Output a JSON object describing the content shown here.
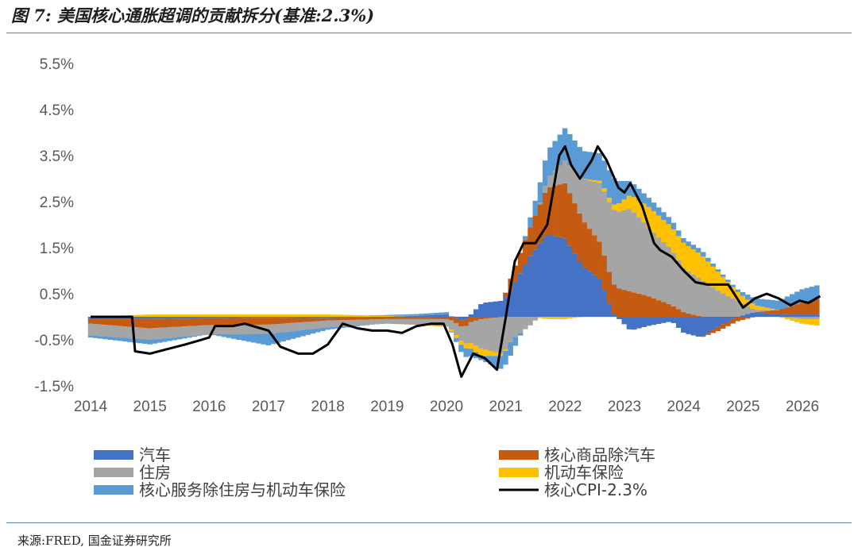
{
  "header": {
    "title": "图 7: 美国核心通胀超调的贡献拆分(基准:2.3%)"
  },
  "footer": {
    "source": "来源:FRED, 国金证券研究所"
  },
  "colors": {
    "autos": "#4472c4",
    "core_goods_ex_autos": "#c55a11",
    "housing": "#a5a5a5",
    "motor_insurance": "#ffc000",
    "services_ex": "#5b9bd5",
    "core_cpi": "#000000"
  },
  "chart_data": {
    "type": "bar",
    "stacked": true,
    "baseline_pct": 2.3,
    "ylim": [
      -1.5,
      5.5
    ],
    "yticks": [
      "-1.5%",
      "-0.5%",
      "0.5%",
      "1.5%",
      "2.5%",
      "3.5%",
      "4.5%",
      "5.5%"
    ],
    "ytick_values": [
      -1.5,
      -0.5,
      0.5,
      1.5,
      2.5,
      3.5,
      4.5,
      5.5
    ],
    "xlim": [
      2014,
      2026.3
    ],
    "xticks": [
      "2014",
      "2015",
      "2016",
      "2017",
      "2018",
      "2019",
      "2020",
      "2021",
      "2022",
      "2023",
      "2024",
      "2025",
      "2026"
    ],
    "xtick_values": [
      2014,
      2015,
      2016,
      2017,
      2018,
      2019,
      2020,
      2021,
      2022,
      2023,
      2024,
      2025,
      2026
    ],
    "legend": [
      {
        "key": "autos",
        "label": "汽车",
        "kind": "bar",
        "color": "#4472c4"
      },
      {
        "key": "core_goods_ex_autos",
        "label": "核心商品除汽车",
        "kind": "bar",
        "color": "#c55a11"
      },
      {
        "key": "housing",
        "label": "住房",
        "kind": "bar",
        "color": "#a5a5a5"
      },
      {
        "key": "motor_insurance",
        "label": "机动车保险",
        "kind": "bar",
        "color": "#ffc000"
      },
      {
        "key": "services_ex",
        "label": "核心服务除住房与机动车保险",
        "kind": "bar",
        "color": "#5b9bd5"
      },
      {
        "key": "core_cpi",
        "label": "核心CPI-2.3%",
        "kind": "line",
        "color": "#000000"
      }
    ],
    "series_knots": {
      "autos": [
        [
          2014,
          -0.05
        ],
        [
          2015,
          -0.05
        ],
        [
          2016,
          -0.03
        ],
        [
          2017,
          -0.02
        ],
        [
          2018,
          -0.03
        ],
        [
          2019,
          0.0
        ],
        [
          2020.0,
          0.05
        ],
        [
          2020.3,
          -0.1
        ],
        [
          2020.6,
          0.3
        ],
        [
          2020.95,
          0.35
        ],
        [
          2021.1,
          0.6
        ],
        [
          2021.4,
          1.3
        ],
        [
          2021.7,
          1.8
        ],
        [
          2022.0,
          1.7
        ],
        [
          2022.3,
          1.1
        ],
        [
          2022.6,
          0.8
        ],
        [
          2022.8,
          0.1
        ],
        [
          2023.1,
          -0.3
        ],
        [
          2023.4,
          -0.2
        ],
        [
          2023.8,
          -0.1
        ],
        [
          2024.0,
          -0.35
        ],
        [
          2024.3,
          -0.45
        ],
        [
          2024.6,
          -0.2
        ],
        [
          2024.9,
          0.0
        ],
        [
          2025.2,
          0.1
        ],
        [
          2025.6,
          0.05
        ],
        [
          2026.0,
          0.05
        ],
        [
          2026.3,
          0.05
        ]
      ],
      "core_goods_ex_autos": [
        [
          2014,
          -0.1
        ],
        [
          2015,
          -0.2
        ],
        [
          2016,
          -0.15
        ],
        [
          2017,
          -0.15
        ],
        [
          2018,
          -0.05
        ],
        [
          2019,
          -0.05
        ],
        [
          2020.0,
          -0.05
        ],
        [
          2020.3,
          -0.15
        ],
        [
          2020.6,
          -0.05
        ],
        [
          2020.95,
          0.0
        ],
        [
          2021.1,
          0.3
        ],
        [
          2021.4,
          0.6
        ],
        [
          2021.7,
          1.0
        ],
        [
          2022.0,
          1.2
        ],
        [
          2022.3,
          1.0
        ],
        [
          2022.6,
          0.8
        ],
        [
          2022.8,
          0.65
        ],
        [
          2023.1,
          0.55
        ],
        [
          2023.4,
          0.45
        ],
        [
          2023.8,
          0.25
        ],
        [
          2024.0,
          0.1
        ],
        [
          2024.3,
          0.0
        ],
        [
          2024.6,
          -0.1
        ],
        [
          2024.9,
          -0.1
        ],
        [
          2025.2,
          0.0
        ],
        [
          2025.6,
          0.1
        ],
        [
          2026.0,
          0.25
        ],
        [
          2026.3,
          0.35
        ]
      ],
      "housing": [
        [
          2014,
          -0.25
        ],
        [
          2015,
          -0.25
        ],
        [
          2016,
          -0.2
        ],
        [
          2017,
          -0.2
        ],
        [
          2018,
          -0.15
        ],
        [
          2019,
          -0.1
        ],
        [
          2020.0,
          -0.15
        ],
        [
          2020.3,
          -0.35
        ],
        [
          2020.6,
          -0.65
        ],
        [
          2020.95,
          -0.8
        ],
        [
          2021.1,
          -0.5
        ],
        [
          2021.4,
          -0.2
        ],
        [
          2021.7,
          0.2
        ],
        [
          2022.0,
          0.5
        ],
        [
          2022.3,
          0.9
        ],
        [
          2022.6,
          1.3
        ],
        [
          2022.8,
          1.6
        ],
        [
          2023.1,
          1.8
        ],
        [
          2023.4,
          1.5
        ],
        [
          2023.8,
          1.2
        ],
        [
          2024.0,
          0.95
        ],
        [
          2024.3,
          0.8
        ],
        [
          2024.6,
          0.55
        ],
        [
          2024.9,
          0.35
        ],
        [
          2025.2,
          0.05
        ],
        [
          2025.6,
          0.0
        ],
        [
          2026.0,
          -0.05
        ],
        [
          2026.3,
          -0.05
        ]
      ],
      "motor_insurance": [
        [
          2014,
          0.0
        ],
        [
          2015,
          0.05
        ],
        [
          2016,
          0.05
        ],
        [
          2017,
          0.05
        ],
        [
          2018,
          0.05
        ],
        [
          2019,
          0.02
        ],
        [
          2020.0,
          -0.02
        ],
        [
          2020.3,
          -0.1
        ],
        [
          2020.6,
          -0.15
        ],
        [
          2020.95,
          -0.05
        ],
        [
          2021.1,
          0.0
        ],
        [
          2021.4,
          0.0
        ],
        [
          2021.7,
          -0.05
        ],
        [
          2022.0,
          -0.05
        ],
        [
          2022.3,
          0.0
        ],
        [
          2022.6,
          0.05
        ],
        [
          2022.8,
          0.1
        ],
        [
          2023.1,
          0.3
        ],
        [
          2023.4,
          0.45
        ],
        [
          2023.8,
          0.5
        ],
        [
          2024.0,
          0.55
        ],
        [
          2024.3,
          0.55
        ],
        [
          2024.6,
          0.4
        ],
        [
          2024.9,
          0.2
        ],
        [
          2025.2,
          0.1
        ],
        [
          2025.6,
          0.0
        ],
        [
          2026.0,
          -0.1
        ],
        [
          2026.3,
          -0.15
        ]
      ],
      "services_ex": [
        [
          2014,
          -0.05
        ],
        [
          2015,
          -0.1
        ],
        [
          2016,
          0.0
        ],
        [
          2017,
          -0.25
        ],
        [
          2018,
          -0.05
        ],
        [
          2019,
          0.02
        ],
        [
          2020.0,
          0.05
        ],
        [
          2020.3,
          -0.2
        ],
        [
          2020.6,
          -0.1
        ],
        [
          2020.95,
          -0.3
        ],
        [
          2021.1,
          -0.3
        ],
        [
          2021.4,
          0.2
        ],
        [
          2021.7,
          0.6
        ],
        [
          2022.0,
          0.7
        ],
        [
          2022.3,
          0.6
        ],
        [
          2022.6,
          0.6
        ],
        [
          2022.8,
          0.6
        ],
        [
          2023.1,
          0.3
        ],
        [
          2023.4,
          0.2
        ],
        [
          2023.8,
          0.15
        ],
        [
          2024.0,
          0.1
        ],
        [
          2024.3,
          0.1
        ],
        [
          2024.6,
          0.05
        ],
        [
          2024.9,
          0.05
        ],
        [
          2025.2,
          0.15
        ],
        [
          2025.6,
          0.2
        ],
        [
          2026.0,
          0.3
        ],
        [
          2026.3,
          0.3
        ]
      ],
      "core_cpi": [
        [
          2014,
          0.0
        ],
        [
          2014.45,
          0.0
        ],
        [
          2014.7,
          0.0
        ],
        [
          2014.75,
          -0.75
        ],
        [
          2015.0,
          -0.8
        ],
        [
          2015.3,
          -0.7
        ],
        [
          2015.6,
          -0.6
        ],
        [
          2016.0,
          -0.45
        ],
        [
          2016.1,
          -0.2
        ],
        [
          2016.4,
          -0.2
        ],
        [
          2016.6,
          -0.15
        ],
        [
          2017.0,
          -0.3
        ],
        [
          2017.2,
          -0.65
        ],
        [
          2017.5,
          -0.8
        ],
        [
          2017.75,
          -0.8
        ],
        [
          2018.0,
          -0.6
        ],
        [
          2018.25,
          -0.15
        ],
        [
          2018.5,
          -0.25
        ],
        [
          2018.75,
          -0.3
        ],
        [
          2019.0,
          -0.3
        ],
        [
          2019.25,
          -0.35
        ],
        [
          2019.5,
          -0.2
        ],
        [
          2019.75,
          -0.15
        ],
        [
          2019.95,
          -0.15
        ],
        [
          2020.1,
          -0.6
        ],
        [
          2020.25,
          -1.3
        ],
        [
          2020.45,
          -0.8
        ],
        [
          2020.65,
          -0.9
        ],
        [
          2020.85,
          -1.15
        ],
        [
          2021.0,
          0.0
        ],
        [
          2021.15,
          1.2
        ],
        [
          2021.3,
          1.6
        ],
        [
          2021.5,
          1.6
        ],
        [
          2021.7,
          2.0
        ],
        [
          2021.9,
          3.5
        ],
        [
          2022.0,
          3.7
        ],
        [
          2022.1,
          3.3
        ],
        [
          2022.25,
          3.0
        ],
        [
          2022.45,
          3.4
        ],
        [
          2022.55,
          3.7
        ],
        [
          2022.7,
          3.4
        ],
        [
          2022.9,
          2.8
        ],
        [
          2023.0,
          2.7
        ],
        [
          2023.1,
          2.9
        ],
        [
          2023.3,
          2.4
        ],
        [
          2023.5,
          1.6
        ],
        [
          2023.6,
          1.45
        ],
        [
          2023.8,
          1.3
        ],
        [
          2024.0,
          1.0
        ],
        [
          2024.2,
          0.75
        ],
        [
          2024.4,
          0.7
        ],
        [
          2024.6,
          0.7
        ],
        [
          2024.75,
          0.7
        ],
        [
          2025.0,
          0.2
        ],
        [
          2025.2,
          0.4
        ],
        [
          2025.4,
          0.5
        ],
        [
          2025.6,
          0.4
        ],
        [
          2025.8,
          0.25
        ],
        [
          2025.95,
          0.35
        ],
        [
          2026.1,
          0.3
        ],
        [
          2026.3,
          0.45
        ]
      ]
    },
    "bar_step_years": 0.0833
  }
}
